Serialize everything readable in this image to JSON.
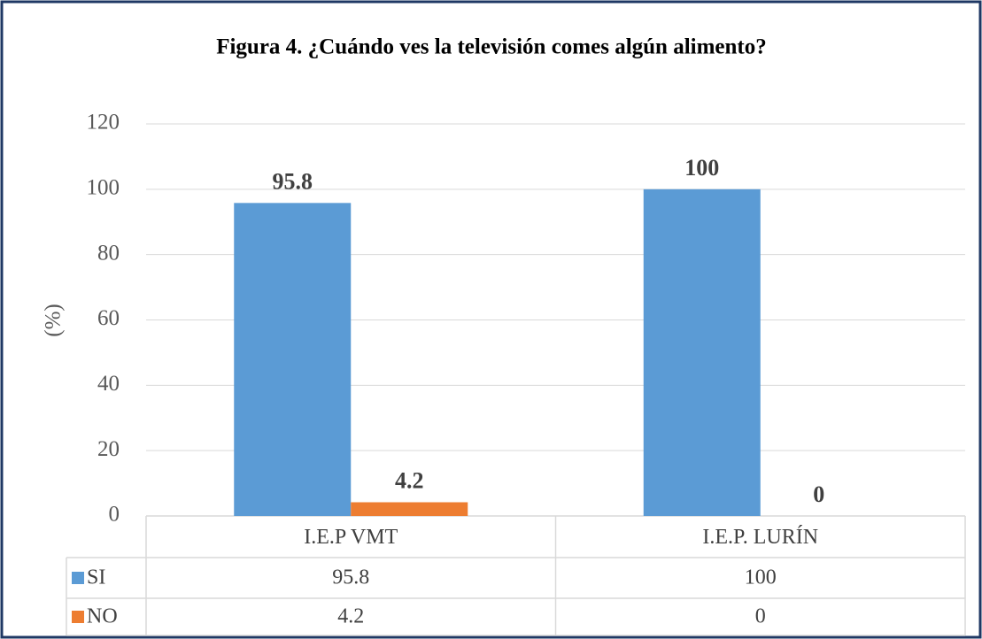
{
  "chart_data": {
    "type": "bar",
    "title": "Figura 4. ¿Cuándo ves la televisión comes algún alimento?",
    "y_label": "(%)",
    "categories": [
      "I.E.P VMT",
      "I.E.P. LURÍN"
    ],
    "series": [
      {
        "name": "SI",
        "color": "#5b9bd5",
        "values": [
          95.8,
          100
        ]
      },
      {
        "name": "NO",
        "color": "#ed7d31",
        "values": [
          4.2,
          0
        ]
      }
    ],
    "ylim": [
      0,
      120
    ],
    "yticks": [
      0,
      20,
      40,
      60,
      80,
      100,
      120
    ],
    "grid": true
  }
}
